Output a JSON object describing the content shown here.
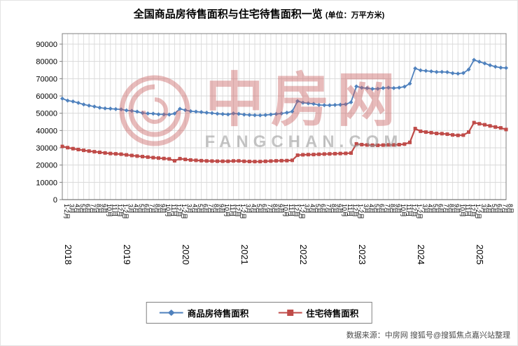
{
  "title": {
    "text": "全国商品房待售面积与住宅待售面积一览",
    "unit": "(单位：万平方米)"
  },
  "watermark": {
    "brand": "中房网",
    "domain": "FANGCHAN.COM"
  },
  "source": "数据来源：中房网 搜狐号@搜狐焦点嘉兴站整理",
  "chart_data": {
    "type": "line",
    "title": "全国商品房待售面积与住宅待售面积一览",
    "unit": "万平方米",
    "ylim": [
      0,
      90000
    ],
    "ytick_step": 10000,
    "grid": true,
    "legend_position": "bottom",
    "month_labels": [
      "1-2月",
      "3月",
      "4月",
      "5月",
      "6月",
      "7月",
      "8月",
      "9月",
      "10月",
      "11月",
      "12月"
    ],
    "years": [
      {
        "label": "2018",
        "points": 11
      },
      {
        "label": "2019",
        "points": 11
      },
      {
        "label": "2020",
        "points": 11
      },
      {
        "label": "2021",
        "points": 11
      },
      {
        "label": "2022",
        "points": 11
      },
      {
        "label": "2023",
        "points": 11
      },
      {
        "label": "2024",
        "points": 11
      },
      {
        "label": "2025",
        "points": 7
      }
    ],
    "series": [
      {
        "name": "商品房待售面积",
        "color": "#4f81bd",
        "marker": "diamond",
        "values": [
          58468,
          57329,
          56818,
          56010,
          55083,
          54428,
          53873,
          53191,
          52789,
          52627,
          52414,
          52251,
          51646,
          51380,
          50928,
          50162,
          49876,
          49784,
          49346,
          49323,
          49221,
          49821,
          52563,
          51779,
          51184,
          50928,
          50662,
          50323,
          50052,
          49707,
          49492,
          49287,
          49850,
          49622,
          49211,
          49016,
          48869,
          48798,
          48974,
          49244,
          49536,
          49861,
          50313,
          51023,
          57026,
          56113,
          55735,
          55433,
          54784,
          54655,
          54605,
          54767,
          54953,
          55203,
          56366,
          65528,
          64770,
          64487,
          64120,
          64159,
          64564,
          64795,
          64537,
          64835,
          65385,
          67127,
          75969,
          74833,
          74553,
          74256,
          73894,
          73926,
          73783,
          73176,
          72920,
          73286,
          75327,
          80864,
          79812,
          78864,
          77783,
          76948,
          76386,
          76213
        ]
      },
      {
        "name": "住宅待售面积",
        "color": "#bf4b48",
        "marker": "square",
        "values": [
          30777,
          30090,
          29502,
          28980,
          28530,
          28110,
          27720,
          27360,
          27010,
          26690,
          26500,
          26300,
          25900,
          25550,
          25200,
          24900,
          24600,
          24300,
          24050,
          23800,
          23550,
          22473,
          23690,
          23264,
          22934,
          22740,
          22544,
          22394,
          22314,
          22244,
          22214,
          22204,
          22379,
          22425,
          22183,
          22076,
          22024,
          22032,
          22168,
          22316,
          22448,
          22542,
          22586,
          22761,
          25699,
          25954,
          26054,
          26094,
          26255,
          26386,
          26477,
          26583,
          26682,
          26764,
          26947,
          32271,
          31836,
          31640,
          31500,
          31444,
          31563,
          31698,
          31683,
          31823,
          32131,
          33119,
          41108,
          39568,
          39088,
          38743,
          38293,
          38183,
          37883,
          37446,
          37196,
          37337,
          39088,
          44563,
          43899,
          43333,
          42675,
          42029,
          41511,
          40577
        ]
      }
    ]
  }
}
